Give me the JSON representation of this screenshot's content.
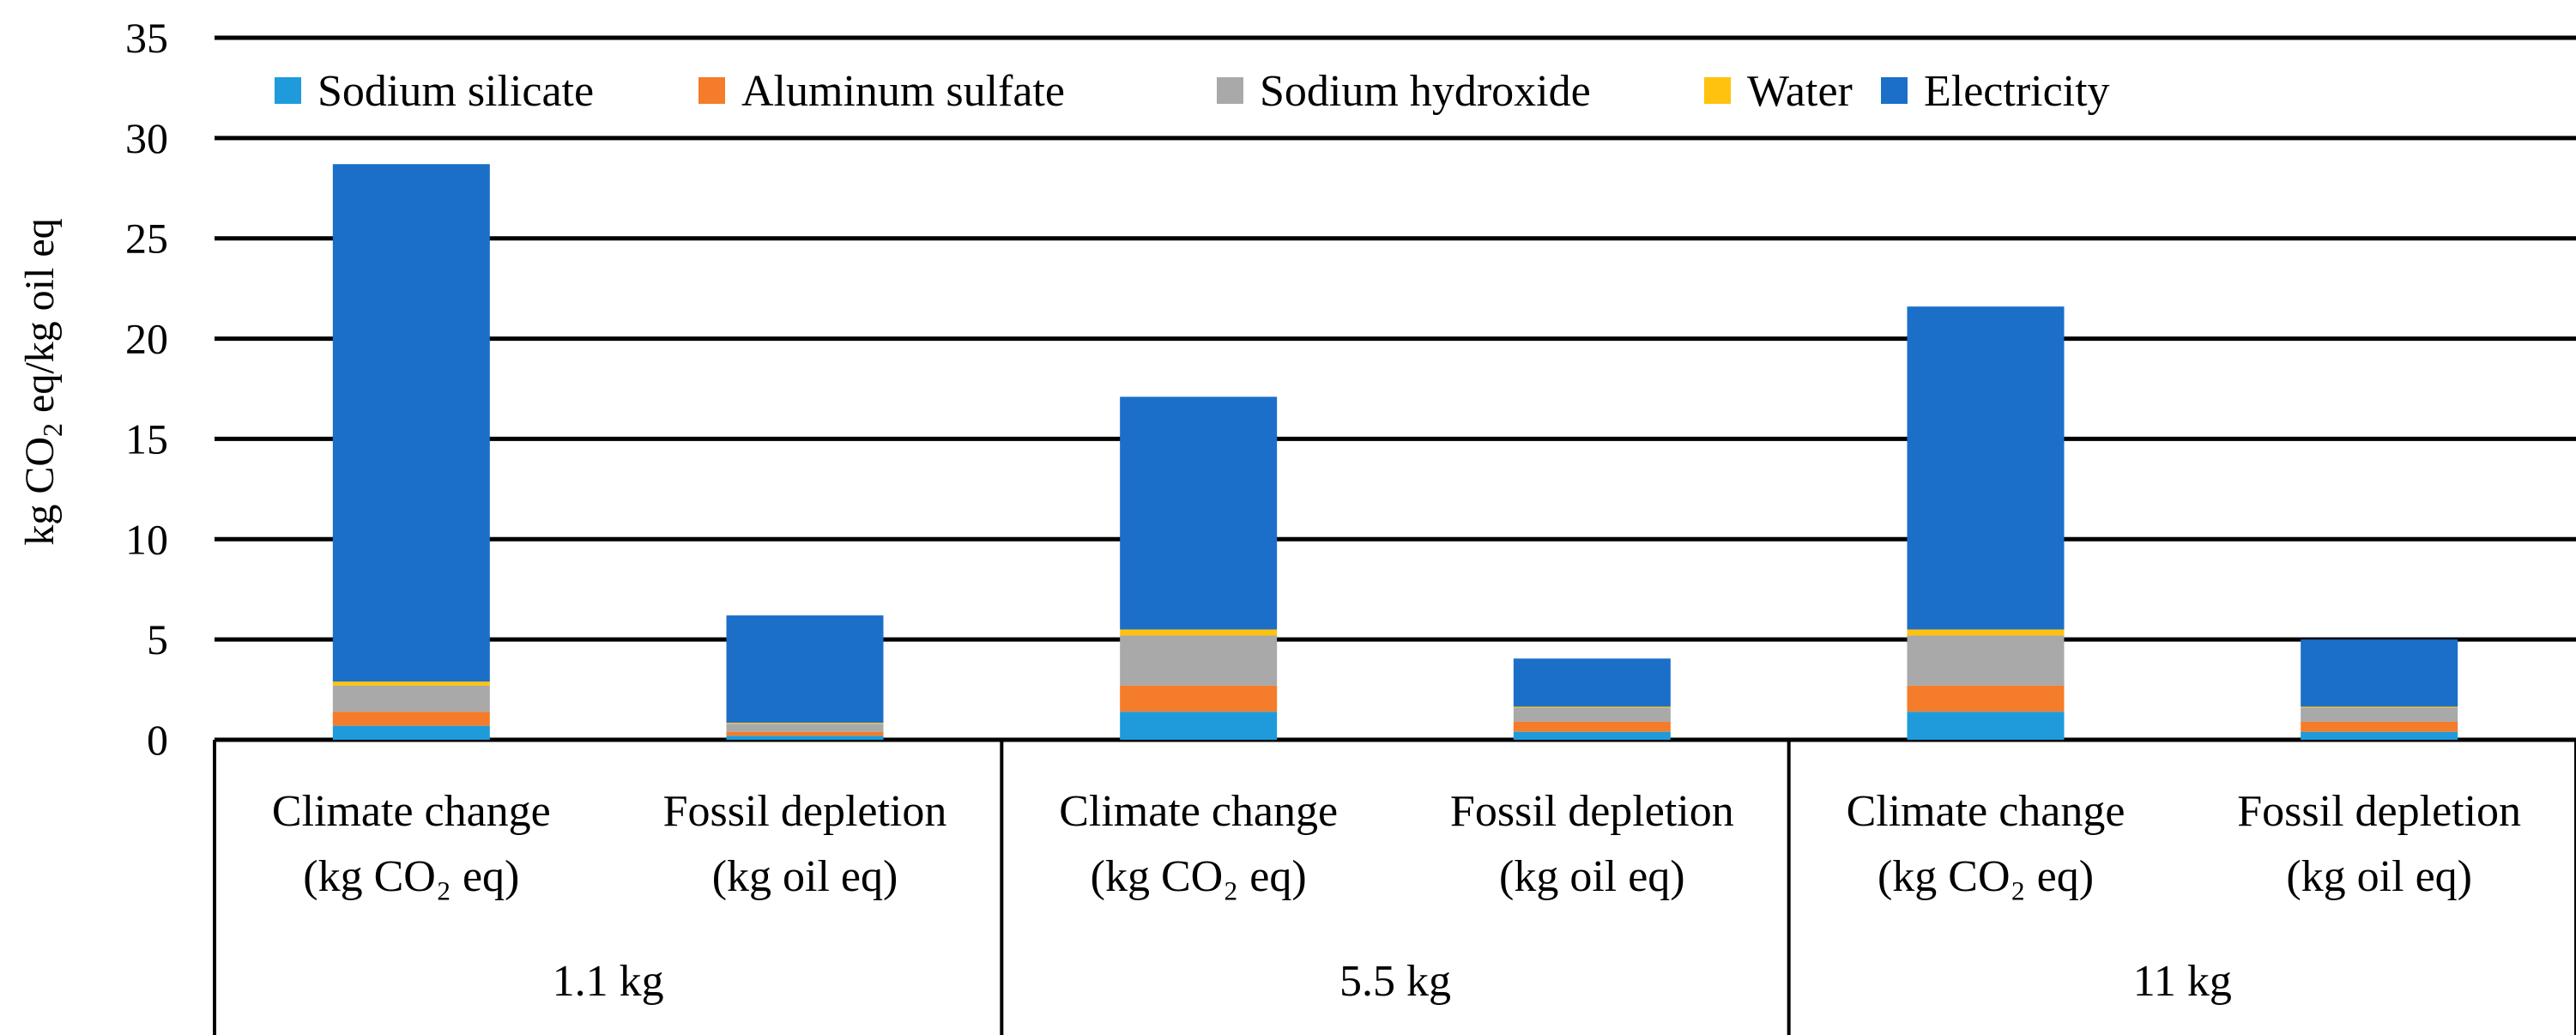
{
  "chart_data": {
    "type": "stacked-bar",
    "title": "",
    "ylabel": "kg CO2 eq/kg oil eq",
    "ylabel_parts": {
      "before": "kg CO",
      "sub": "2",
      "after": " eq/kg oil eq"
    },
    "ylim": [
      0,
      35
    ],
    "yticks": [
      "0",
      "5",
      "10",
      "15",
      "20",
      "25",
      "30",
      "35"
    ],
    "grid": true,
    "legend_position": "top",
    "categories": [
      {
        "line1": "Climate change",
        "line2": "(kg CO₂ eq)",
        "group": "1.1 kg"
      },
      {
        "line1": "Fossil depletion",
        "line2": "(kg oil eq)",
        "group": "1.1 kg"
      },
      {
        "line1": "Climate change",
        "line2": "(kg CO₂ eq)",
        "group": "5.5 kg"
      },
      {
        "line1": "Fossil depletion",
        "line2": "(kg oil eq)",
        "group": "5.5 kg"
      },
      {
        "line1": "Climate change",
        "line2": "(kg CO₂ eq)",
        "group": "11 kg"
      },
      {
        "line1": "Fossil depletion",
        "line2": "(kg oil eq)",
        "group": "11 kg"
      }
    ],
    "groups": [
      "1.1 kg",
      "5.5 kg",
      "11 kg"
    ],
    "series": [
      {
        "name": "Sodium silicate",
        "color": "#1f9bdb",
        "values": [
          0.7,
          0.2,
          1.4,
          0.4,
          1.4,
          0.4
        ]
      },
      {
        "name": "Aluminum sulfate",
        "color": "#f47c2a",
        "values": [
          0.7,
          0.2,
          1.3,
          0.5,
          1.3,
          0.5
        ]
      },
      {
        "name": "Sodium hydroxide",
        "color": "#a9a9a9",
        "values": [
          1.3,
          0.4,
          2.5,
          0.7,
          2.5,
          0.7
        ]
      },
      {
        "name": "Water",
        "color": "#ffc20e",
        "values": [
          0.2,
          0.05,
          0.3,
          0.05,
          0.3,
          0.05
        ]
      },
      {
        "name": "Electricity",
        "color": "#1b6fc8",
        "values": [
          25.8,
          5.35,
          11.6,
          2.4,
          16.1,
          3.35
        ]
      }
    ]
  }
}
